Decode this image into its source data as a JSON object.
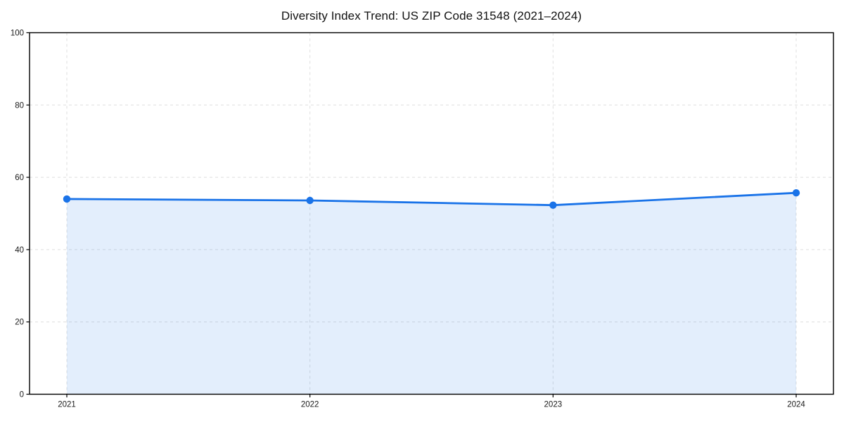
{
  "chart_data": {
    "type": "line",
    "title": "Diversity Index Trend: US ZIP Code 31548 (2021–2024)",
    "x": [
      2021,
      2022,
      2023,
      2024
    ],
    "series": [
      {
        "name": "Diversity Index",
        "values": [
          54.0,
          53.6,
          52.3,
          55.7
        ]
      }
    ],
    "xlabel": "",
    "ylabel": "",
    "xticks": [
      2021,
      2022,
      2023,
      2024
    ],
    "yticks": [
      0,
      20,
      40,
      60,
      80,
      100
    ],
    "ylim": [
      0,
      100
    ],
    "grid": "dashed",
    "legend_position": "none",
    "marker": "circle",
    "area_fill": true,
    "line_color": "#1a73e8",
    "fill_color": "rgba(26,115,232,0.12)",
    "gridline_color": "#dedede",
    "border_color": "#000000"
  }
}
